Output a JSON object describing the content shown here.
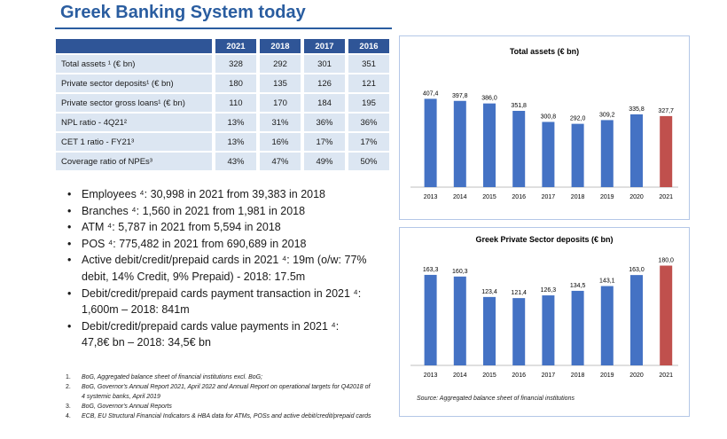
{
  "title": "Greek Banking System today",
  "table": {
    "years": [
      "2021",
      "2018",
      "2017",
      "2016"
    ],
    "rows": [
      {
        "label": "Total assets ¹ (€ bn)",
        "values": [
          "328",
          "292",
          "301",
          "351"
        ]
      },
      {
        "label": "Private sector deposits¹ (€ bn)",
        "values": [
          "180",
          "135",
          "126",
          "121"
        ]
      },
      {
        "label": "Private sector gross loans¹ (€ bn)",
        "values": [
          "110",
          "170",
          "184",
          "195"
        ]
      },
      {
        "label": "NPL ratio  - 4Q21²",
        "values": [
          "13%",
          "31%",
          "36%",
          "36%"
        ]
      },
      {
        "label": "CET 1 ratio  - FY21³",
        "values": [
          "13%",
          "16%",
          "17%",
          "17%"
        ]
      },
      {
        "label": "Coverage ratio of NPEs³",
        "values": [
          "43%",
          "47%",
          "49%",
          "50%"
        ]
      }
    ]
  },
  "bullets": [
    "Employees ⁴: 30,998 in 2021 from 39,383 in 2018",
    "Branches ⁴: 1,560 in 2021 from 1,981 in 2018",
    "ATM ⁴: 5,787 in 2021 from 5,594 in 2018",
    "POS ⁴: 775,482 in 2021 from 690,689 in 2018",
    "Active debit/credit/prepaid cards in 2021 ⁴: 19m (o/w: 77% debit, 14% Credit, 9% Prepaid) - 2018: 17.5m",
    "Debit/credit/prepaid cards payment transaction in 2021 ⁴: 1,600m – 2018: 841m",
    "Debit/credit/prepaid cards value payments in 2021 ⁴: 47,8€ bn – 2018: 34,5€ bn"
  ],
  "footnotes": [
    {
      "num": "1.",
      "text": "BoG, Aggregated balance sheet of financial institutions excl. BoG;"
    },
    {
      "num": "2.",
      "text": "BoG, Governor's Annual Report 2021, April 2022 and Annual Report on operational targets for Q42018 of 4 systemic banks, April 2019"
    },
    {
      "num": "3.",
      "text": "BoG, Governor's Annual Reports"
    },
    {
      "num": "4.",
      "text": "ECB, EU Structural Financial Indicators & HBA data for ATMs, POSs and active debit/credit/prepaid cards"
    }
  ],
  "source": "Source: Aggregated balance sheet of financial institutions",
  "colors": {
    "bar": "#4472c4",
    "highlight": "#c0504d",
    "header": "#2f5597",
    "cell": "#dce6f2",
    "title": "#2a5da0"
  },
  "chart_data": [
    {
      "type": "bar",
      "title": "Total assets (€ bn)",
      "categories": [
        "2013",
        "2014",
        "2015",
        "2016",
        "2017",
        "2018",
        "2019",
        "2020",
        "2021"
      ],
      "values": [
        407.4,
        397.8,
        386.0,
        351.8,
        300.8,
        292.0,
        309.2,
        335.8,
        327.7
      ],
      "labels": [
        "407,4",
        "397,8",
        "386,0",
        "351,8",
        "300,8",
        "292,0",
        "309,2",
        "335,8",
        "327,7"
      ],
      "highlight_index": 8,
      "ylim": [
        0,
        450
      ]
    },
    {
      "type": "bar",
      "title": "Greek Private Sector deposits (€ bn)",
      "categories": [
        "2013",
        "2014",
        "2015",
        "2016",
        "2017",
        "2018",
        "2019",
        "2020",
        "2021"
      ],
      "values": [
        163.3,
        160.3,
        123.4,
        121.4,
        126.3,
        134.5,
        143.1,
        163.0,
        180.0
      ],
      "labels": [
        "163,3",
        "160,3",
        "123,4",
        "121,4",
        "126,3",
        "134,5",
        "143,1",
        "163,0",
        "180,0"
      ],
      "highlight_index": 8,
      "ylim": [
        0,
        200
      ]
    }
  ]
}
